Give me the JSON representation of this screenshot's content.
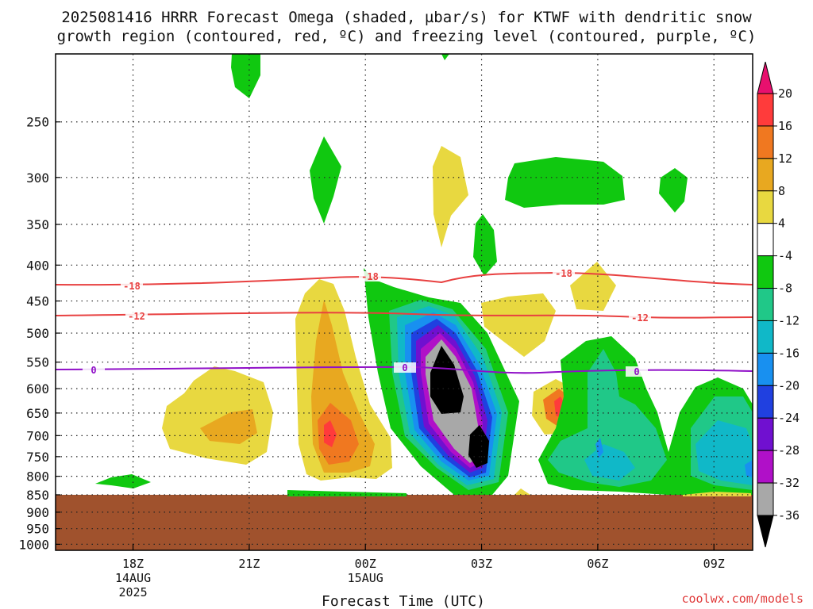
{
  "title_line1": "2025081416 HRRR Forecast Omega (shaded, µbar/s) for KTWF with dendritic snow",
  "title_line2": "growth region (contoured, red, ºC) and freezing level (contoured, purple, ºC)",
  "credit": "coolwx.com/models",
  "chart_data": {
    "type": "heatmap",
    "title": "2025081416 HRRR Forecast Omega (shaded, µbar/s) for KTWF with dendritic snow growth region (contoured, red, ºC) and freezing level (contoured, purple, ºC)",
    "xlabel": "Forecast Time (UTC)",
    "ylabel": "",
    "y_scale": "log-pressure",
    "y_axis": {
      "ticks": [
        "250",
        "300",
        "350",
        "400",
        "450",
        "500",
        "550",
        "600",
        "650",
        "700",
        "750",
        "800",
        "850",
        "900",
        "950",
        "1000"
      ],
      "range_hPa": [
        200,
        1020
      ]
    },
    "x_axis": {
      "range": [
        "2025-08-14 16Z",
        "2025-08-15 10Z"
      ],
      "ticks": [
        {
          "label": "18Z",
          "sub1": "14AUG",
          "sub2": "2025",
          "time": "2025-08-14 18Z"
        },
        {
          "label": "21Z",
          "sub1": "",
          "sub2": "",
          "time": "2025-08-14 21Z"
        },
        {
          "label": "00Z",
          "sub1": "15AUG",
          "sub2": "",
          "time": "2025-08-15 00Z"
        },
        {
          "label": "03Z",
          "sub1": "",
          "sub2": "",
          "time": "2025-08-15 03Z"
        },
        {
          "label": "06Z",
          "sub1": "",
          "sub2": "",
          "time": "2025-08-15 06Z"
        },
        {
          "label": "09Z",
          "sub1": "",
          "sub2": "",
          "time": "2025-08-15 09Z"
        }
      ]
    },
    "grid": true,
    "terrain_below_hPa": 870,
    "colorbar": {
      "labels": [
        "20",
        "16",
        "12",
        "8",
        "4",
        "-4",
        "-8",
        "-12",
        "-16",
        "-20",
        "-24",
        "-28",
        "-32",
        "-36"
      ],
      "colors": [
        "#e8106e",
        "#ff3b3b",
        "#f07820",
        "#e8a820",
        "#e8d840",
        "#ffffff",
        "#10c810",
        "#20c888",
        "#10b8c8",
        "#1890f0",
        "#2040e0",
        "#7010d0",
        "#b010c8",
        "#a8a8a8",
        "#000000"
      ]
    },
    "contours": [
      {
        "level": "-18",
        "color": "#e84040",
        "label": "-18"
      },
      {
        "level": "-12",
        "color": "#e84040",
        "label": "-12"
      },
      {
        "level": "0",
        "color": "#9010c8",
        "label": "0"
      }
    ],
    "omega_features": [
      {
        "center": [
          "2025-08-15 02Z",
          580
        ],
        "min_value": -36,
        "sign": "upward"
      },
      {
        "center": [
          "2025-08-14 23Z",
          715
        ],
        "max_value": 16,
        "sign": "downward"
      },
      {
        "center": [
          "2025-08-15 05Z",
          660
        ],
        "max_value": 16,
        "sign": "downward"
      },
      {
        "center": [
          "2025-08-15 09Z",
          720
        ],
        "min_value": -16,
        "sign": "upward"
      }
    ]
  }
}
